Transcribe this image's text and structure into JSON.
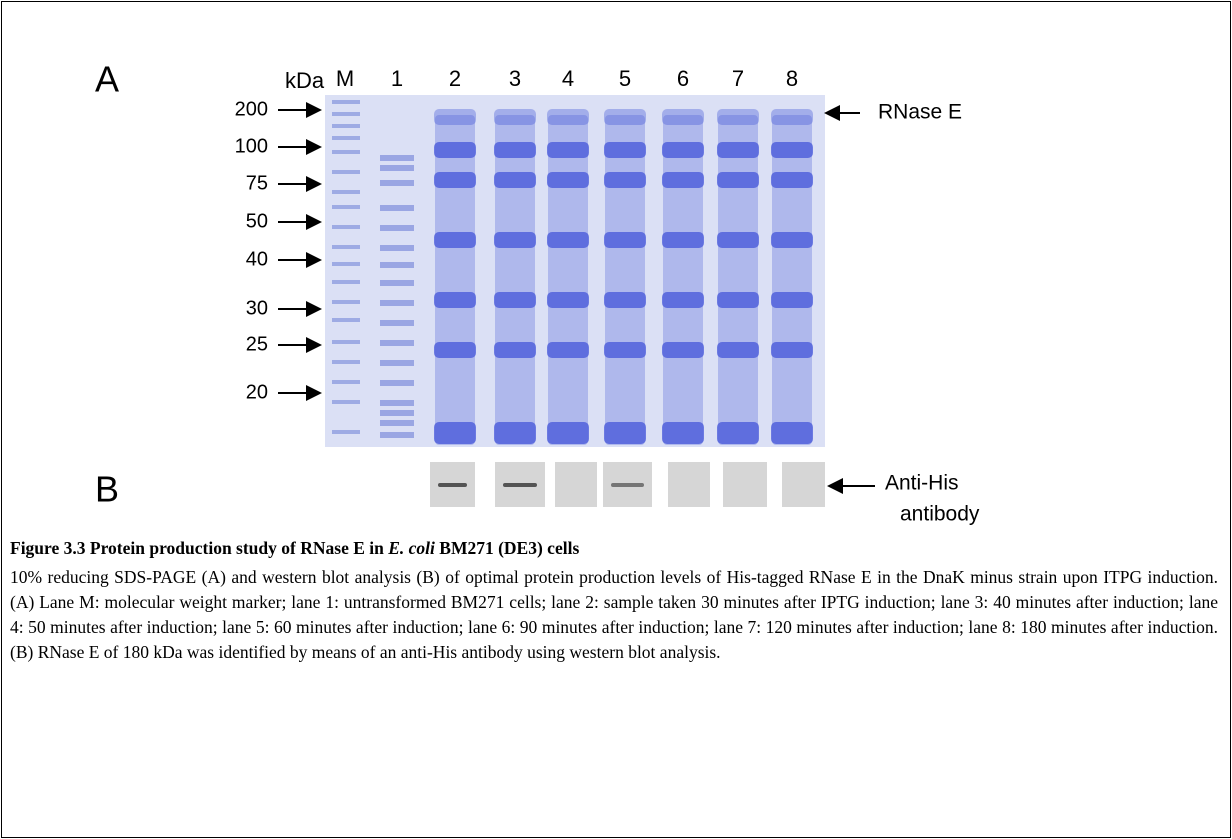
{
  "panel_a": {
    "label": "A",
    "axis_unit": "kDa",
    "lane_labels": [
      "M",
      "1",
      "2",
      "3",
      "4",
      "5",
      "6",
      "7",
      "8"
    ],
    "markers": [
      "200",
      "100",
      "75",
      "50",
      "40",
      "30",
      "25",
      "20"
    ],
    "band_label": "RNase E"
  },
  "panel_b": {
    "label": "B",
    "band_label_lines": [
      "Anti-His",
      "antibody"
    ]
  },
  "caption": {
    "title": [
      "Figure 3.3 Protein production study of RNase E in ",
      "E. coli",
      " BM271 (DE3) cells"
    ],
    "body": "10% reducing SDS-PAGE (A) and western blot analysis (B) of optimal protein production levels of His-tagged RNase E in the DnaK minus strain upon ITPG induction. (A) Lane M: molecular weight marker; lane 1: untransformed BM271 cells; lane 2: sample taken 30 minutes after IPTG induction; lane 3: 40 minutes after induction; lane 4: 50 minutes after induction; lane 5: 60 minutes after induction; lane 6: 90 minutes after induction; lane 7: 120 minutes after induction; lane 8: 180 minutes after induction. (B) RNase E of 180 kDa was identified by means of an anti-His antibody using western blot analysis."
  }
}
